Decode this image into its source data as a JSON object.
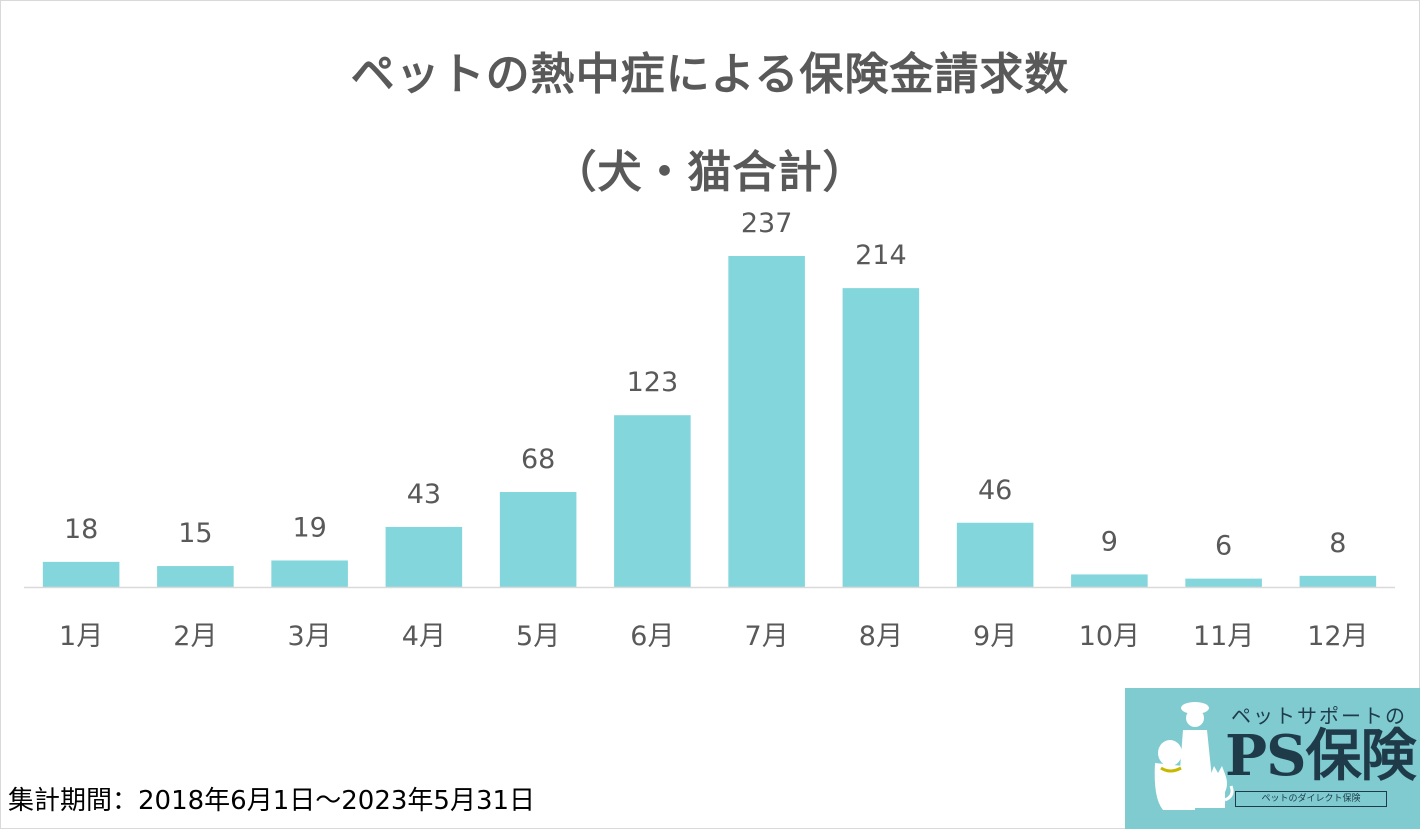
{
  "chart_data": {
    "type": "bar",
    "title": "ペットの熱中症による保険金請求数",
    "subtitle": "（犬・猫合計）",
    "categories": [
      "1月",
      "2月",
      "3月",
      "4月",
      "5月",
      "6月",
      "7月",
      "8月",
      "9月",
      "10月",
      "11月",
      "12月"
    ],
    "values": [
      18,
      15,
      19,
      43,
      68,
      123,
      237,
      214,
      46,
      9,
      6,
      8
    ],
    "bar_color": "#83d6db",
    "axis_color": "#d9d9d9",
    "grid": false,
    "legend": "none",
    "ylim": [
      0,
      237
    ]
  },
  "footnote": "集計期間：2018年6月1日～2023年5月31日",
  "logo": {
    "top_text": "ペットサポートの",
    "main_text": "PS保険",
    "sub_text": "ペットのダイレクト保険",
    "background": "#7fcbd0"
  }
}
